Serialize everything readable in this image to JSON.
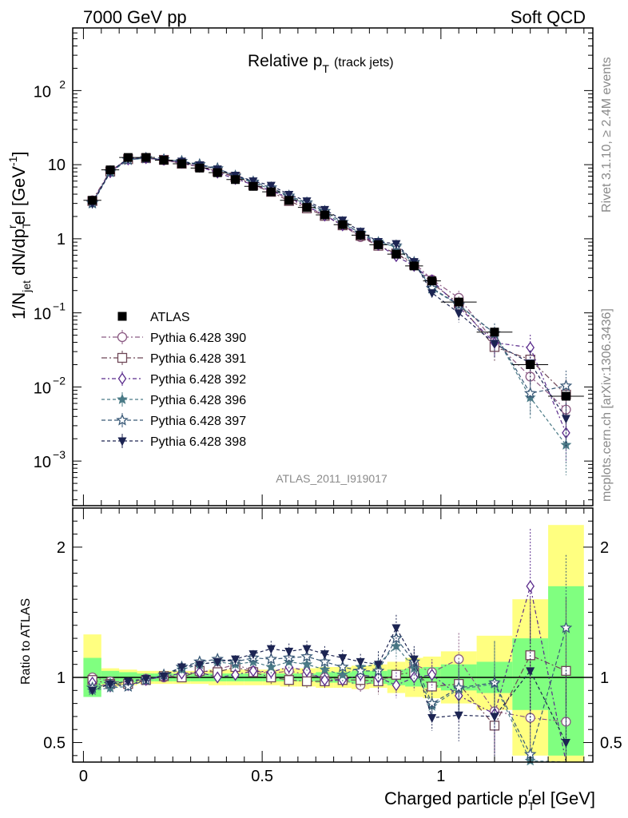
{
  "header": {
    "left": "7000 GeV pp",
    "right": "Soft QCD"
  },
  "plot_title": {
    "main": "Relative p",
    "sub": "T",
    "suffix": "(track jets)"
  },
  "side_labels": {
    "rivet": "Rivet 3.1.10, ≥ 2.4M events",
    "mcplots": "mcplots.cern.ch [arXiv:1306.3436]"
  },
  "analysis_id": "ATLAS_2011_I919017",
  "axes": {
    "y_main": "1/N",
    "y_main_sub": "jet",
    "y_main_mid": " dN/dp",
    "y_main_sub2": "T",
    "y_main_sup2": "r",
    "y_main_tail": "el [GeV",
    "y_main_sup3": "-1",
    "y_main_end": "]",
    "y_ratio": "Ratio to ATLAS",
    "x": "Charged particle p",
    "x_sub": "T",
    "x_sup": "r",
    "x_tail": "el [GeV]"
  },
  "ticks": {
    "x": [
      "0",
      "0.5",
      "1"
    ],
    "ratio": [
      "0.5",
      "1",
      "2"
    ],
    "main_plain": [
      "10",
      "1"
    ],
    "main_pow": [
      {
        "base": "10",
        "exp": "2",
        "value": 100
      },
      {
        "base": "10",
        "exp": "−1",
        "value": 0.1
      },
      {
        "base": "10",
        "exp": "−2",
        "value": 0.01
      },
      {
        "base": "10",
        "exp": "−3",
        "value": 0.001
      }
    ]
  },
  "legend": [
    {
      "label": "ATLAS",
      "color": "#000000",
      "marker": "square-filled"
    },
    {
      "label": "Pythia 6.428 390",
      "color": "#8b5a83",
      "marker": "circle-open"
    },
    {
      "label": "Pythia 6.428 391",
      "color": "#6e4656",
      "marker": "square-open"
    },
    {
      "label": "Pythia 6.428 392",
      "color": "#5a2b8c",
      "marker": "diamond-open"
    },
    {
      "label": "Pythia 6.428 396",
      "color": "#4a7a86",
      "marker": "star-filled"
    },
    {
      "label": "Pythia 6.428 397",
      "color": "#3a5a78",
      "marker": "star-open"
    },
    {
      "label": "Pythia 6.428 398",
      "color": "#1c2452",
      "marker": "triangle-down-filled"
    }
  ],
  "chart_data": {
    "type": "scatter",
    "x_range": [
      -0.03,
      1.425
    ],
    "y_range_main": [
      0.00025,
      700
    ],
    "y_range_ratio": [
      0.35,
      2.3
    ],
    "bins": [
      [
        0.0,
        0.05
      ],
      [
        0.05,
        0.1
      ],
      [
        0.1,
        0.15
      ],
      [
        0.15,
        0.2
      ],
      [
        0.2,
        0.25
      ],
      [
        0.25,
        0.3
      ],
      [
        0.3,
        0.35
      ],
      [
        0.35,
        0.4
      ],
      [
        0.4,
        0.45
      ],
      [
        0.45,
        0.5
      ],
      [
        0.5,
        0.55
      ],
      [
        0.55,
        0.6
      ],
      [
        0.6,
        0.65
      ],
      [
        0.65,
        0.7
      ],
      [
        0.7,
        0.75
      ],
      [
        0.75,
        0.8
      ],
      [
        0.8,
        0.85
      ],
      [
        0.85,
        0.9
      ],
      [
        0.9,
        0.95
      ],
      [
        0.95,
        1.0
      ],
      [
        1.0,
        1.1
      ],
      [
        1.1,
        1.2
      ],
      [
        1.2,
        1.3
      ],
      [
        1.3,
        1.4
      ]
    ],
    "x": [
      0.025,
      0.075,
      0.125,
      0.175,
      0.225,
      0.275,
      0.325,
      0.375,
      0.425,
      0.475,
      0.525,
      0.575,
      0.625,
      0.675,
      0.725,
      0.775,
      0.825,
      0.875,
      0.925,
      0.975,
      1.05,
      1.15,
      1.25,
      1.35
    ],
    "atlas": [
      3.3,
      8.5,
      12.5,
      12.5,
      11.5,
      10.3,
      9.0,
      7.8,
      6.3,
      5.1,
      4.3,
      3.3,
      2.65,
      2.1,
      1.55,
      1.12,
      0.83,
      0.62,
      0.43,
      0.27,
      0.14,
      0.055,
      0.02,
      0.0075
    ],
    "band_inner": [
      [
        0.85,
        1.15
      ],
      [
        0.95,
        1.05
      ],
      [
        0.96,
        1.04
      ],
      [
        0.97,
        1.03
      ],
      [
        0.97,
        1.03
      ],
      [
        0.97,
        1.03
      ],
      [
        0.97,
        1.03
      ],
      [
        0.97,
        1.03
      ],
      [
        0.97,
        1.03
      ],
      [
        0.97,
        1.03
      ],
      [
        0.97,
        1.03
      ],
      [
        0.97,
        1.03
      ],
      [
        0.97,
        1.03
      ],
      [
        0.96,
        1.04
      ],
      [
        0.96,
        1.04
      ],
      [
        0.95,
        1.05
      ],
      [
        0.95,
        1.05
      ],
      [
        0.94,
        1.06
      ],
      [
        0.93,
        1.07
      ],
      [
        0.92,
        1.08
      ],
      [
        0.9,
        1.1
      ],
      [
        0.88,
        1.12
      ],
      [
        0.75,
        1.3
      ],
      [
        0.4,
        1.7
      ]
    ],
    "band_outer": [
      [
        0.92,
        1.33
      ],
      [
        0.93,
        1.07
      ],
      [
        0.94,
        1.06
      ],
      [
        0.95,
        1.05
      ],
      [
        0.95,
        1.05
      ],
      [
        0.95,
        1.05
      ],
      [
        0.95,
        1.05
      ],
      [
        0.94,
        1.06
      ],
      [
        0.94,
        1.06
      ],
      [
        0.94,
        1.06
      ],
      [
        0.94,
        1.06
      ],
      [
        0.93,
        1.07
      ],
      [
        0.93,
        1.07
      ],
      [
        0.92,
        1.08
      ],
      [
        0.92,
        1.08
      ],
      [
        0.91,
        1.09
      ],
      [
        0.92,
        1.1
      ],
      [
        0.88,
        1.12
      ],
      [
        0.85,
        1.15
      ],
      [
        0.84,
        1.16
      ],
      [
        0.8,
        1.2
      ],
      [
        0.75,
        1.32
      ],
      [
        0.4,
        1.6
      ],
      [
        0.35,
        2.17
      ]
    ],
    "series": [
      {
        "name": "Pythia 6.428 390",
        "ratio": [
          1.0,
          0.97,
          0.96,
          0.99,
          1.0,
          1.02,
          1.04,
          1.06,
          1.1,
          1.05,
          1.03,
          1.05,
          1.02,
          1.0,
          0.98,
          0.94,
          0.97,
          1.02,
          1.1,
          1.04,
          1.14,
          0.74,
          0.69,
          0.66
        ]
      },
      {
        "name": "Pythia 6.428 391",
        "ratio": [
          0.98,
          0.95,
          0.95,
          0.98,
          1.01,
          1.0,
          1.05,
          1.04,
          1.08,
          1.04,
          1.0,
          0.98,
          0.97,
          0.97,
          0.98,
          0.98,
          0.97,
          1.02,
          1.04,
          0.93,
          0.95,
          0.63,
          1.17,
          1.05
        ]
      },
      {
        "name": "Pythia 6.428 392",
        "ratio": [
          0.96,
          0.93,
          0.94,
          0.98,
          1.01,
          1.03,
          1.04,
          1.0,
          1.02,
          1.05,
          1.04,
          1.08,
          1.05,
          0.98,
          0.98,
          1.02,
          1.0,
          0.94,
          1.0,
          1.02,
          0.86,
          0.72,
          1.7,
          0.32
        ]
      },
      {
        "name": "Pythia 6.428 396",
        "ratio": [
          0.9,
          0.92,
          0.93,
          0.98,
          1.02,
          1.06,
          1.1,
          1.12,
          1.1,
          1.12,
          1.08,
          1.12,
          1.1,
          1.06,
          1.02,
          1.08,
          1.1,
          1.24,
          1.07,
          0.78,
          0.91,
          0.95,
          0.36,
          0.22
        ]
      },
      {
        "name": "Pythia 6.428 397",
        "ratio": [
          0.92,
          0.95,
          0.93,
          0.98,
          1.02,
          1.08,
          1.12,
          1.14,
          1.12,
          1.15,
          1.14,
          1.15,
          1.16,
          1.12,
          1.08,
          1.05,
          1.05,
          1.3,
          1.12,
          0.8,
          0.92,
          0.96,
          0.41,
          1.38
        ]
      },
      {
        "name": "Pythia 6.428 398",
        "ratio": [
          0.9,
          0.95,
          0.97,
          0.99,
          1.01,
          1.08,
          1.1,
          1.12,
          1.14,
          1.18,
          1.22,
          1.2,
          1.22,
          1.18,
          1.15,
          1.12,
          1.1,
          1.38,
          1.14,
          0.69,
          0.71,
          0.7,
          1.05,
          0.5
        ]
      }
    ]
  }
}
